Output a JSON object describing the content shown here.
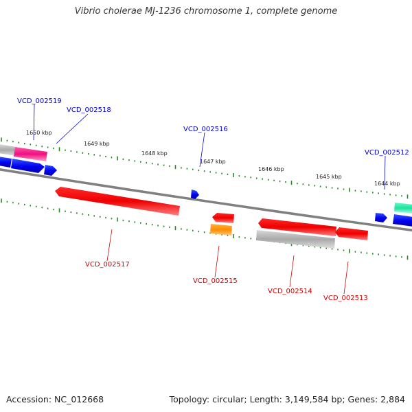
{
  "title": "Vibrio cholerae MJ-1236 chromosome 1, complete genome",
  "footer": {
    "accession": "Accession: NC_012668",
    "stats": "Topology: circular; Length: 3,149,584 bp; Genes: 2,884"
  },
  "scale_labels": [
    "1650 kbp",
    "1649 kbp",
    "1648 kbp",
    "1647 kbp",
    "1646 kbp",
    "1645 kbp",
    "1644 kbp"
  ],
  "genes": [
    {
      "id": "VCD_002519",
      "strand": "forward",
      "color": "#0000cc"
    },
    {
      "id": "VCD_002518",
      "strand": "forward",
      "color": "#0000cc"
    },
    {
      "id": "VCD_002516",
      "strand": "forward",
      "color": "#0000cc"
    },
    {
      "id": "VCD_002512",
      "strand": "forward",
      "color": "#0000cc"
    },
    {
      "id": "VCD_002517",
      "strand": "reverse",
      "color": "#cc0000"
    },
    {
      "id": "VCD_002515",
      "strand": "reverse",
      "color": "#cc0000"
    },
    {
      "id": "VCD_002514",
      "strand": "reverse",
      "color": "#cc0000"
    },
    {
      "id": "VCD_002513",
      "strand": "reverse",
      "color": "#cc0000"
    }
  ],
  "colors": {
    "backbone": "#808080",
    "ticks": "#228b22",
    "forward_cds": "#0000ff",
    "reverse_cds": "#ff0000",
    "other_feature": "#ff8c00",
    "pseudo": "#c0c0c0",
    "pink_feature": "#ff1493",
    "teal_feature": "#20e0a0"
  }
}
